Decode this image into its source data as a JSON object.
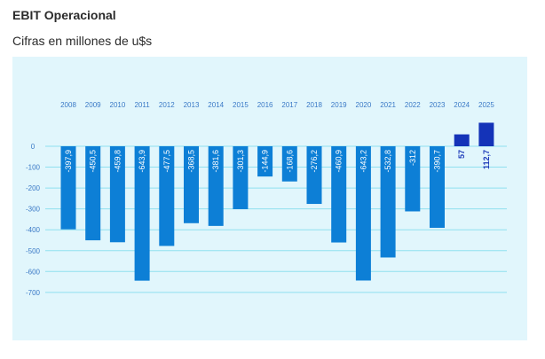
{
  "header": {
    "title": "EBIT Operacional",
    "subtitle": "Cifras en millones de u$s"
  },
  "chart_data": {
    "type": "bar",
    "title": "EBIT Operacional",
    "subtitle": "Cifras en millones de u$s",
    "categories": [
      "2008",
      "2009",
      "2010",
      "2011",
      "2012",
      "2013",
      "2014",
      "2015",
      "2016",
      "2017",
      "2018",
      "2019",
      "2020",
      "2021",
      "2022",
      "2023",
      "2024",
      "2025"
    ],
    "values": [
      -397.9,
      -450.5,
      -459.8,
      -643.9,
      -477.5,
      -368.5,
      -381.6,
      -301.3,
      -144.9,
      -168.6,
      -276.2,
      -460.9,
      -643.2,
      -532.8,
      -312,
      -390.7,
      57,
      112.7
    ],
    "value_labels": [
      "-397,9",
      "-450,5",
      "-459,8",
      "-643,9",
      "-477,5",
      "-368,5",
      "-381,6",
      "-301,3",
      "-144,9",
      "-168,6",
      "-276,2",
      "-460,9",
      "-643,2",
      "-532,8",
      "-312",
      "-390,7",
      "57",
      "112,7"
    ],
    "y_ticks": [
      0,
      -100,
      -200,
      -300,
      -400,
      -500,
      -600,
      -700
    ],
    "y_tick_labels": [
      "0",
      "-100",
      "-200",
      "-300",
      "-400",
      "-500",
      "-600",
      "-700"
    ],
    "ylim": [
      -700,
      120
    ],
    "xlabel": "",
    "ylabel": "",
    "grid": true,
    "colors": {
      "negative": "#0d7fd6",
      "positive": "#1433b8",
      "grid": "#8fe0ef",
      "background": "#e1f6fc",
      "text": "#3a79c6"
    }
  }
}
